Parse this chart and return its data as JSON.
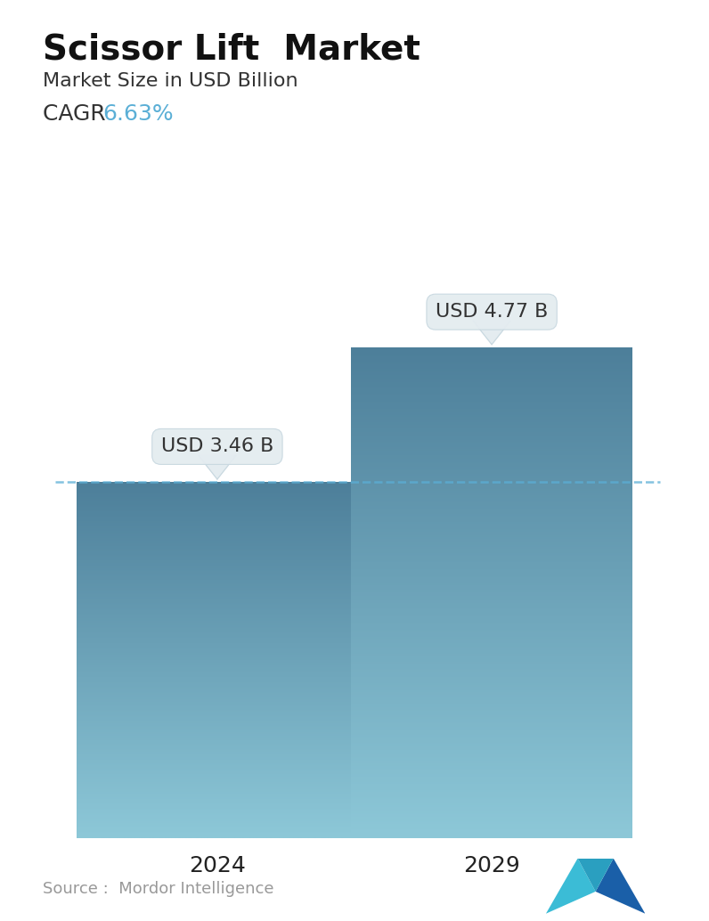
{
  "title": "Scissor Lift  Market",
  "subtitle": "Market Size in USD Billion",
  "cagr_label": "CAGR  ",
  "cagr_value": "6.63%",
  "cagr_color": "#5bafd6",
  "categories": [
    "2024",
    "2029"
  ],
  "values": [
    3.46,
    4.77
  ],
  "bar_labels": [
    "USD 3.46 B",
    "USD 4.77 B"
  ],
  "bar_top_color": "#4d7f9a",
  "bar_bottom_color": "#8dc8d8",
  "dashed_line_color": "#5bafd6",
  "dashed_line_y": 3.46,
  "source_text": "Source :  Mordor Intelligence",
  "source_color": "#999999",
  "background_color": "#ffffff",
  "title_fontsize": 28,
  "subtitle_fontsize": 16,
  "cagr_fontsize": 18,
  "tick_fontsize": 18,
  "label_fontsize": 16,
  "ylim": [
    0,
    6.0
  ],
  "bar_width": 0.45,
  "x_positions": [
    0.28,
    0.72
  ]
}
